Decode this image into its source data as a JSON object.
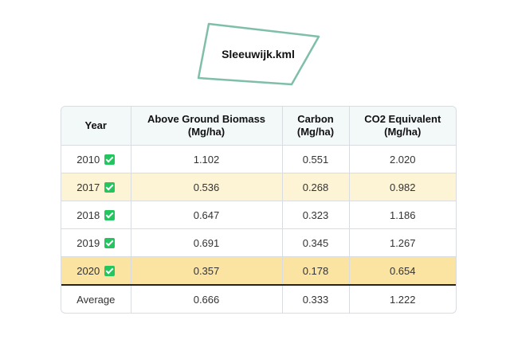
{
  "file": {
    "name": "Sleeuwijk.kml",
    "outline_color": "#7fbfa8"
  },
  "table": {
    "headers": [
      "Year",
      "Above Ground Biomass (Mg/ha)",
      "Carbon (Mg/ha)",
      "CO2 Equivalent (Mg/ha)"
    ],
    "rows": [
      {
        "year": "2010",
        "checked": true,
        "agb": "1.102",
        "carbon": "0.551",
        "co2": "2.020"
      },
      {
        "year": "2017",
        "checked": true,
        "agb": "0.536",
        "carbon": "0.268",
        "co2": "0.982"
      },
      {
        "year": "2018",
        "checked": true,
        "agb": "0.647",
        "carbon": "0.323",
        "co2": "1.186"
      },
      {
        "year": "2019",
        "checked": true,
        "agb": "0.691",
        "carbon": "0.345",
        "co2": "1.267"
      },
      {
        "year": "2020",
        "checked": true,
        "agb": "0.357",
        "carbon": "0.178",
        "co2": "0.654"
      }
    ],
    "average": {
      "label": "Average",
      "agb": "0.666",
      "carbon": "0.333",
      "co2": "1.222"
    },
    "colors": {
      "highlight_light": "#fdf4d6",
      "highlight_strong": "#fbe3a2",
      "check": "#22c55e"
    }
  }
}
